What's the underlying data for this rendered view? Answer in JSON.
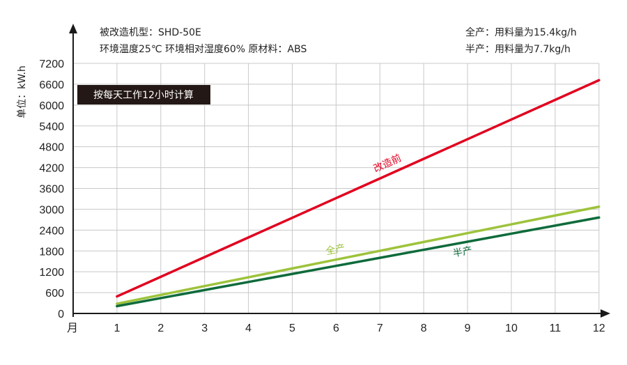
{
  "chart_data": {
    "type": "line",
    "ylabel": "单位：kW.h",
    "x_axis_label": "月",
    "x": [
      1,
      2,
      3,
      4,
      5,
      6,
      7,
      8,
      9,
      10,
      11,
      12
    ],
    "x_ticks": [
      "1",
      "2",
      "3",
      "4",
      "5",
      "6",
      "7",
      "8",
      "9",
      "10",
      "11",
      "12"
    ],
    "y_ticks": [
      "0",
      "600",
      "1200",
      "1800",
      "2400",
      "3000",
      "3600",
      "4200",
      "4800",
      "5400",
      "6000",
      "6600",
      "7200"
    ],
    "ylim": [
      0,
      7200
    ],
    "grid": true,
    "series": [
      {
        "name": "改造前",
        "color": "#e1001f",
        "values": [
          490,
          1056,
          1622,
          2188,
          2754,
          3320,
          3886,
          4452,
          5018,
          5584,
          6150,
          6716
        ]
      },
      {
        "name": "全产",
        "color": "#9dc33b",
        "values": [
          280,
          534,
          788,
          1042,
          1296,
          1550,
          1804,
          2058,
          2312,
          2566,
          2820,
          3074
        ]
      },
      {
        "name": "半产",
        "color": "#0e6b3b",
        "values": [
          210,
          442,
          674,
          906,
          1138,
          1370,
          1602,
          1834,
          2066,
          2298,
          2530,
          2762
        ]
      }
    ]
  },
  "info": {
    "model_line": "被改造机型：SHD-50E",
    "env_line": "环境温度25℃  环境相对湿度60%  原材料：ABS",
    "full_load": "全产：用料量为15.4kg/h",
    "half_load": "半产：用料量为7.7kg/h",
    "note": "按每天工作12小时计算"
  }
}
